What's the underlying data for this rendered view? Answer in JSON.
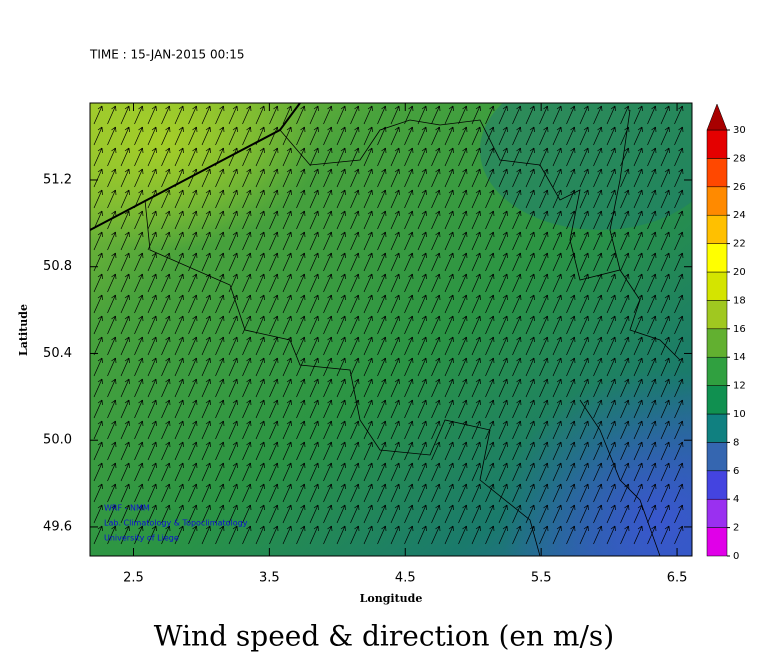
{
  "chart_data": {
    "type": "map",
    "time_label": "TIME : 15-JAN-2015 00:15",
    "title": "Wind speed & direction (en m/s)",
    "xlabel": "Longitude",
    "ylabel": "Latitude",
    "xlim": [
      2.18,
      6.61
    ],
    "ylim": [
      49.466,
      51.555
    ],
    "xticks": [
      2.5,
      3.5,
      4.5,
      5.5,
      6.5
    ],
    "yticks": [
      49.6,
      {
        "value": 50.0,
        "label": "50.0"
      },
      50.4,
      50.8,
      51.2
    ],
    "credits": [
      "WRF - NMM",
      "Lab. Climatology & Topoclimatology",
      "University of Liege"
    ],
    "colorbar": {
      "ticks": [
        0,
        2,
        4,
        6,
        8,
        10,
        12,
        14,
        16,
        18,
        20,
        22,
        24,
        26,
        28,
        30
      ],
      "colors": [
        "#e000e8",
        "#9a30f0",
        "#4444e0",
        "#3566b0",
        "#108080",
        "#109050",
        "#30a040",
        "#62b030",
        "#a0c820",
        "#d4e400",
        "#ffff00",
        "#ffc000",
        "#ff8a00",
        "#ff4800",
        "#e40000"
      ],
      "over_color": "#a80000"
    }
  }
}
